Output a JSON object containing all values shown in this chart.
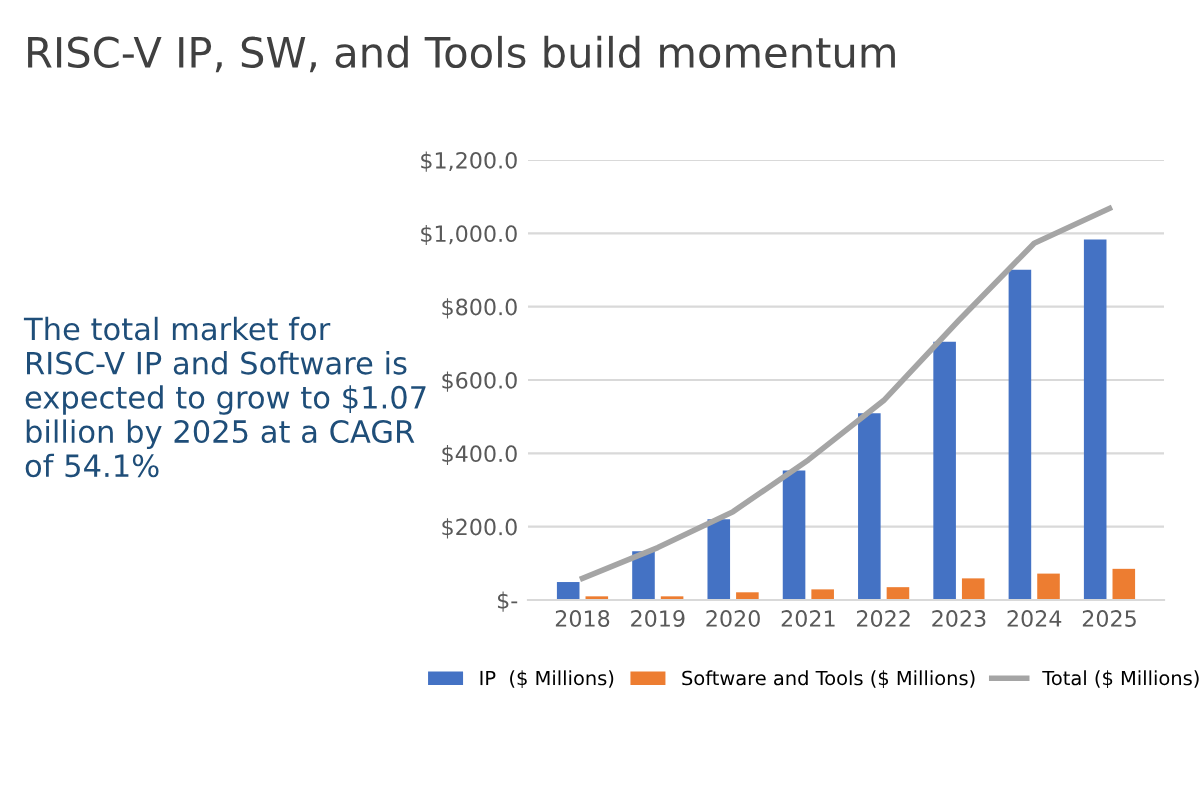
{
  "chart_data": {
    "type": "bar",
    "title": "RISC-V IP, SW, and Tools build momentum",
    "categories": [
      "2018",
      "2019",
      "2020",
      "2021",
      "2022",
      "2023",
      "2024",
      "2025"
    ],
    "series": [
      {
        "name": "IP  ($ Millions)",
        "color": "#4472c4",
        "values": [
          49,
          133,
          220,
          353,
          509,
          704,
          901,
          983
        ]
      },
      {
        "name": "Software and Tools ($ Millions)",
        "color": "#ed7d31",
        "values": [
          10,
          10,
          21,
          29,
          35,
          59,
          72,
          85
        ]
      },
      {
        "name": "Total ($ Millions)",
        "type": "line",
        "color": "#a5a5a5",
        "values": [
          59,
          143,
          241,
          382,
          544,
          763,
          973,
          1068
        ]
      }
    ],
    "ylim": [
      0,
      1200
    ],
    "yticks": [
      {
        "value": 0,
        "label": "$-"
      },
      {
        "value": 200,
        "label": "$200.0"
      },
      {
        "value": 400,
        "label": "$400.0"
      },
      {
        "value": 600,
        "label": "$600.0"
      },
      {
        "value": 800,
        "label": "$800.0"
      },
      {
        "value": 1000,
        "label": "$1,000.0"
      },
      {
        "value": 1200,
        "label": "$1,200.0"
      }
    ],
    "grid": "y",
    "legend": "bottom",
    "annotations": [
      "The total market for RISC-V IP and Software is expected to grow to $1.07 billion by 2025 at a CAGR of 54.1%"
    ]
  }
}
